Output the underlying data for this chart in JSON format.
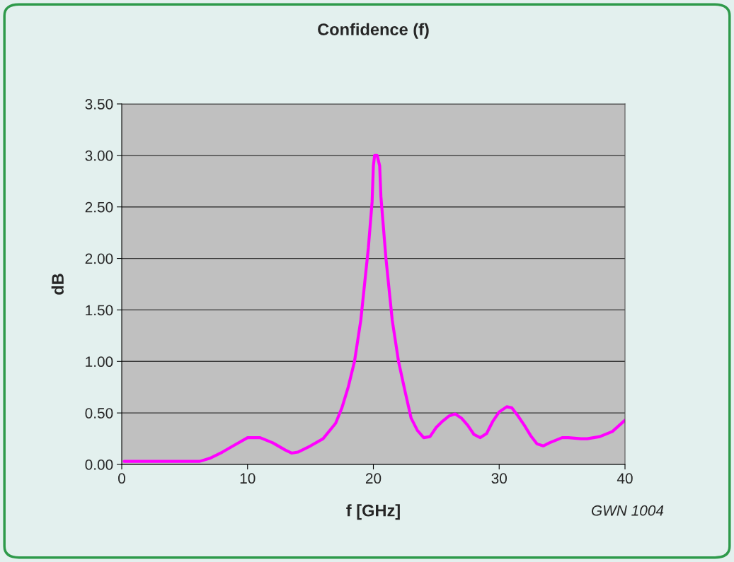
{
  "chart_data": {
    "type": "line",
    "title": "Confidence (f)",
    "xlabel": "f [GHz]",
    "ylabel": "dB",
    "annotations": [
      "GWN 1004"
    ],
    "series": [
      {
        "color": "#ff00ff",
        "x": [
          0.2,
          3,
          6.2,
          7,
          8,
          9,
          10,
          11,
          12,
          13,
          13.5,
          14,
          15,
          16,
          17,
          17.5,
          18,
          18.5,
          19,
          19.3,
          19.6,
          19.9,
          20,
          20.1,
          20.3,
          20.5,
          20.6,
          21,
          21.5,
          22,
          22.5,
          23,
          23.5,
          24,
          24.5,
          25,
          25.5,
          26,
          26.5,
          27,
          27.5,
          28,
          28.5,
          29,
          29.5,
          30,
          30.6,
          31,
          31.5,
          32,
          32.5,
          33,
          33.5,
          34,
          35,
          35.5,
          36.5,
          37,
          38,
          39,
          40
        ],
        "values": [
          0.03,
          0.03,
          0.03,
          0.06,
          0.12,
          0.19,
          0.26,
          0.26,
          0.21,
          0.14,
          0.11,
          0.12,
          0.18,
          0.25,
          0.4,
          0.55,
          0.75,
          1.0,
          1.4,
          1.75,
          2.1,
          2.55,
          2.9,
          3.0,
          3.0,
          2.9,
          2.6,
          2.0,
          1.4,
          1.0,
          0.72,
          0.45,
          0.33,
          0.26,
          0.27,
          0.36,
          0.42,
          0.47,
          0.49,
          0.45,
          0.38,
          0.29,
          0.26,
          0.3,
          0.42,
          0.51,
          0.56,
          0.55,
          0.47,
          0.38,
          0.28,
          0.2,
          0.18,
          0.21,
          0.26,
          0.26,
          0.25,
          0.25,
          0.27,
          0.32,
          0.43
        ]
      }
    ],
    "xlim": [
      0,
      40
    ],
    "xticks": [
      0,
      10,
      20,
      30,
      40
    ],
    "ylim": [
      0,
      3.5
    ],
    "yticks": [
      {
        "value": 0,
        "label": "0.00"
      },
      {
        "value": 0.5,
        "label": "0.50"
      },
      {
        "value": 1,
        "label": "1.00"
      },
      {
        "value": 1.5,
        "label": "1.50"
      },
      {
        "value": 2,
        "label": "2.00"
      },
      {
        "value": 2.5,
        "label": "2.50"
      },
      {
        "value": 3,
        "label": "3.00"
      },
      {
        "value": 3.5,
        "label": "3.50"
      }
    ],
    "grid": "y",
    "legend": false,
    "marker": "none",
    "line_style": "solid"
  }
}
